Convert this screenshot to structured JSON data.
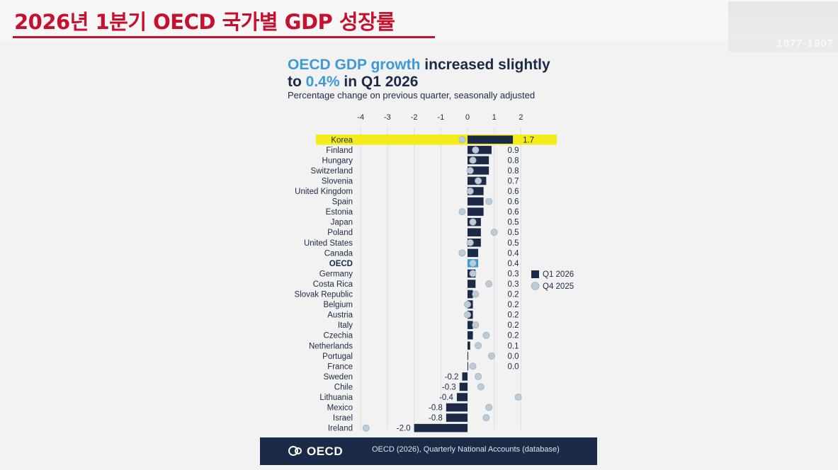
{
  "page": {
    "title": "2026년 1분기 OECD 국가별 GDP 성장률",
    "watermark": "1877-1907"
  },
  "headline": {
    "part1": "OECD GDP growth",
    "part2": " increased slightly",
    "part3": "to ",
    "part4": "0.4%",
    "part5": " in Q1 2026"
  },
  "footer": {
    "logo": "OECD",
    "source": "OECD (2026), Quarterly National Accounts (database)"
  },
  "colors": {
    "bar": "#1b2a47",
    "oecd_bar": "#3d9ad6",
    "dot": "#bccbd8",
    "highlight": "#f5ea1a",
    "title_red": "#c8102e"
  },
  "chart_data": {
    "type": "bar",
    "orientation": "horizontal",
    "subtitle": "Percentage change on previous quarter, seasonally adjusted",
    "xlim": [
      -4,
      2
    ],
    "xticks": [
      "-4",
      "-3",
      "-2",
      "-1",
      "0",
      "1",
      "2"
    ],
    "grid": true,
    "legend_position": "right",
    "highlighted_category": "Korea",
    "bold_category": "OECD",
    "categories": [
      "Korea",
      "Finland",
      "Hungary",
      "Switzerland",
      "Slovenia",
      "United Kingdom",
      "Spain",
      "Estonia",
      "Japan",
      "Poland",
      "United States",
      "Canada",
      "OECD",
      "Germany",
      "Costa Rica",
      "Slovak Republic",
      "Belgium",
      "Austria",
      "Italy",
      "Czechia",
      "Netherlands",
      "Portugal",
      "France",
      "Sweden",
      "Chile",
      "Lithuania",
      "Mexico",
      "Israel",
      "Ireland"
    ],
    "series": [
      {
        "name": "Q1 2026",
        "values": [
          1.7,
          0.9,
          0.8,
          0.8,
          0.7,
          0.6,
          0.6,
          0.6,
          0.5,
          0.5,
          0.5,
          0.4,
          0.4,
          0.3,
          0.3,
          0.2,
          0.2,
          0.2,
          0.2,
          0.2,
          0.1,
          0.0,
          0.0,
          -0.2,
          -0.3,
          -0.4,
          -0.8,
          -0.8,
          -2.0
        ],
        "labels": [
          "1.7",
          "0.9",
          "0.8",
          "0.8",
          "0.7",
          "0.6",
          "0.6",
          "0.6",
          "0.5",
          "0.5",
          "0.5",
          "0.4",
          "0.4",
          "0.3",
          "0.3",
          "0.2",
          "0.2",
          "0.2",
          "0.2",
          "0.2",
          "0.1",
          "0.0",
          "0.0",
          "-0.2",
          "-0.3",
          "-0.4",
          "-0.8",
          "-0.8",
          "-2.0"
        ]
      },
      {
        "name": "Q4 2025",
        "values": [
          -0.2,
          0.3,
          0.2,
          0.1,
          0.4,
          0.1,
          0.8,
          -0.2,
          0.2,
          1.0,
          0.1,
          -0.2,
          0.2,
          0.2,
          0.8,
          0.3,
          0.0,
          0.0,
          0.3,
          0.7,
          0.4,
          0.9,
          0.2,
          0.4,
          0.5,
          1.9,
          0.8,
          0.7,
          -3.8
        ]
      }
    ]
  }
}
